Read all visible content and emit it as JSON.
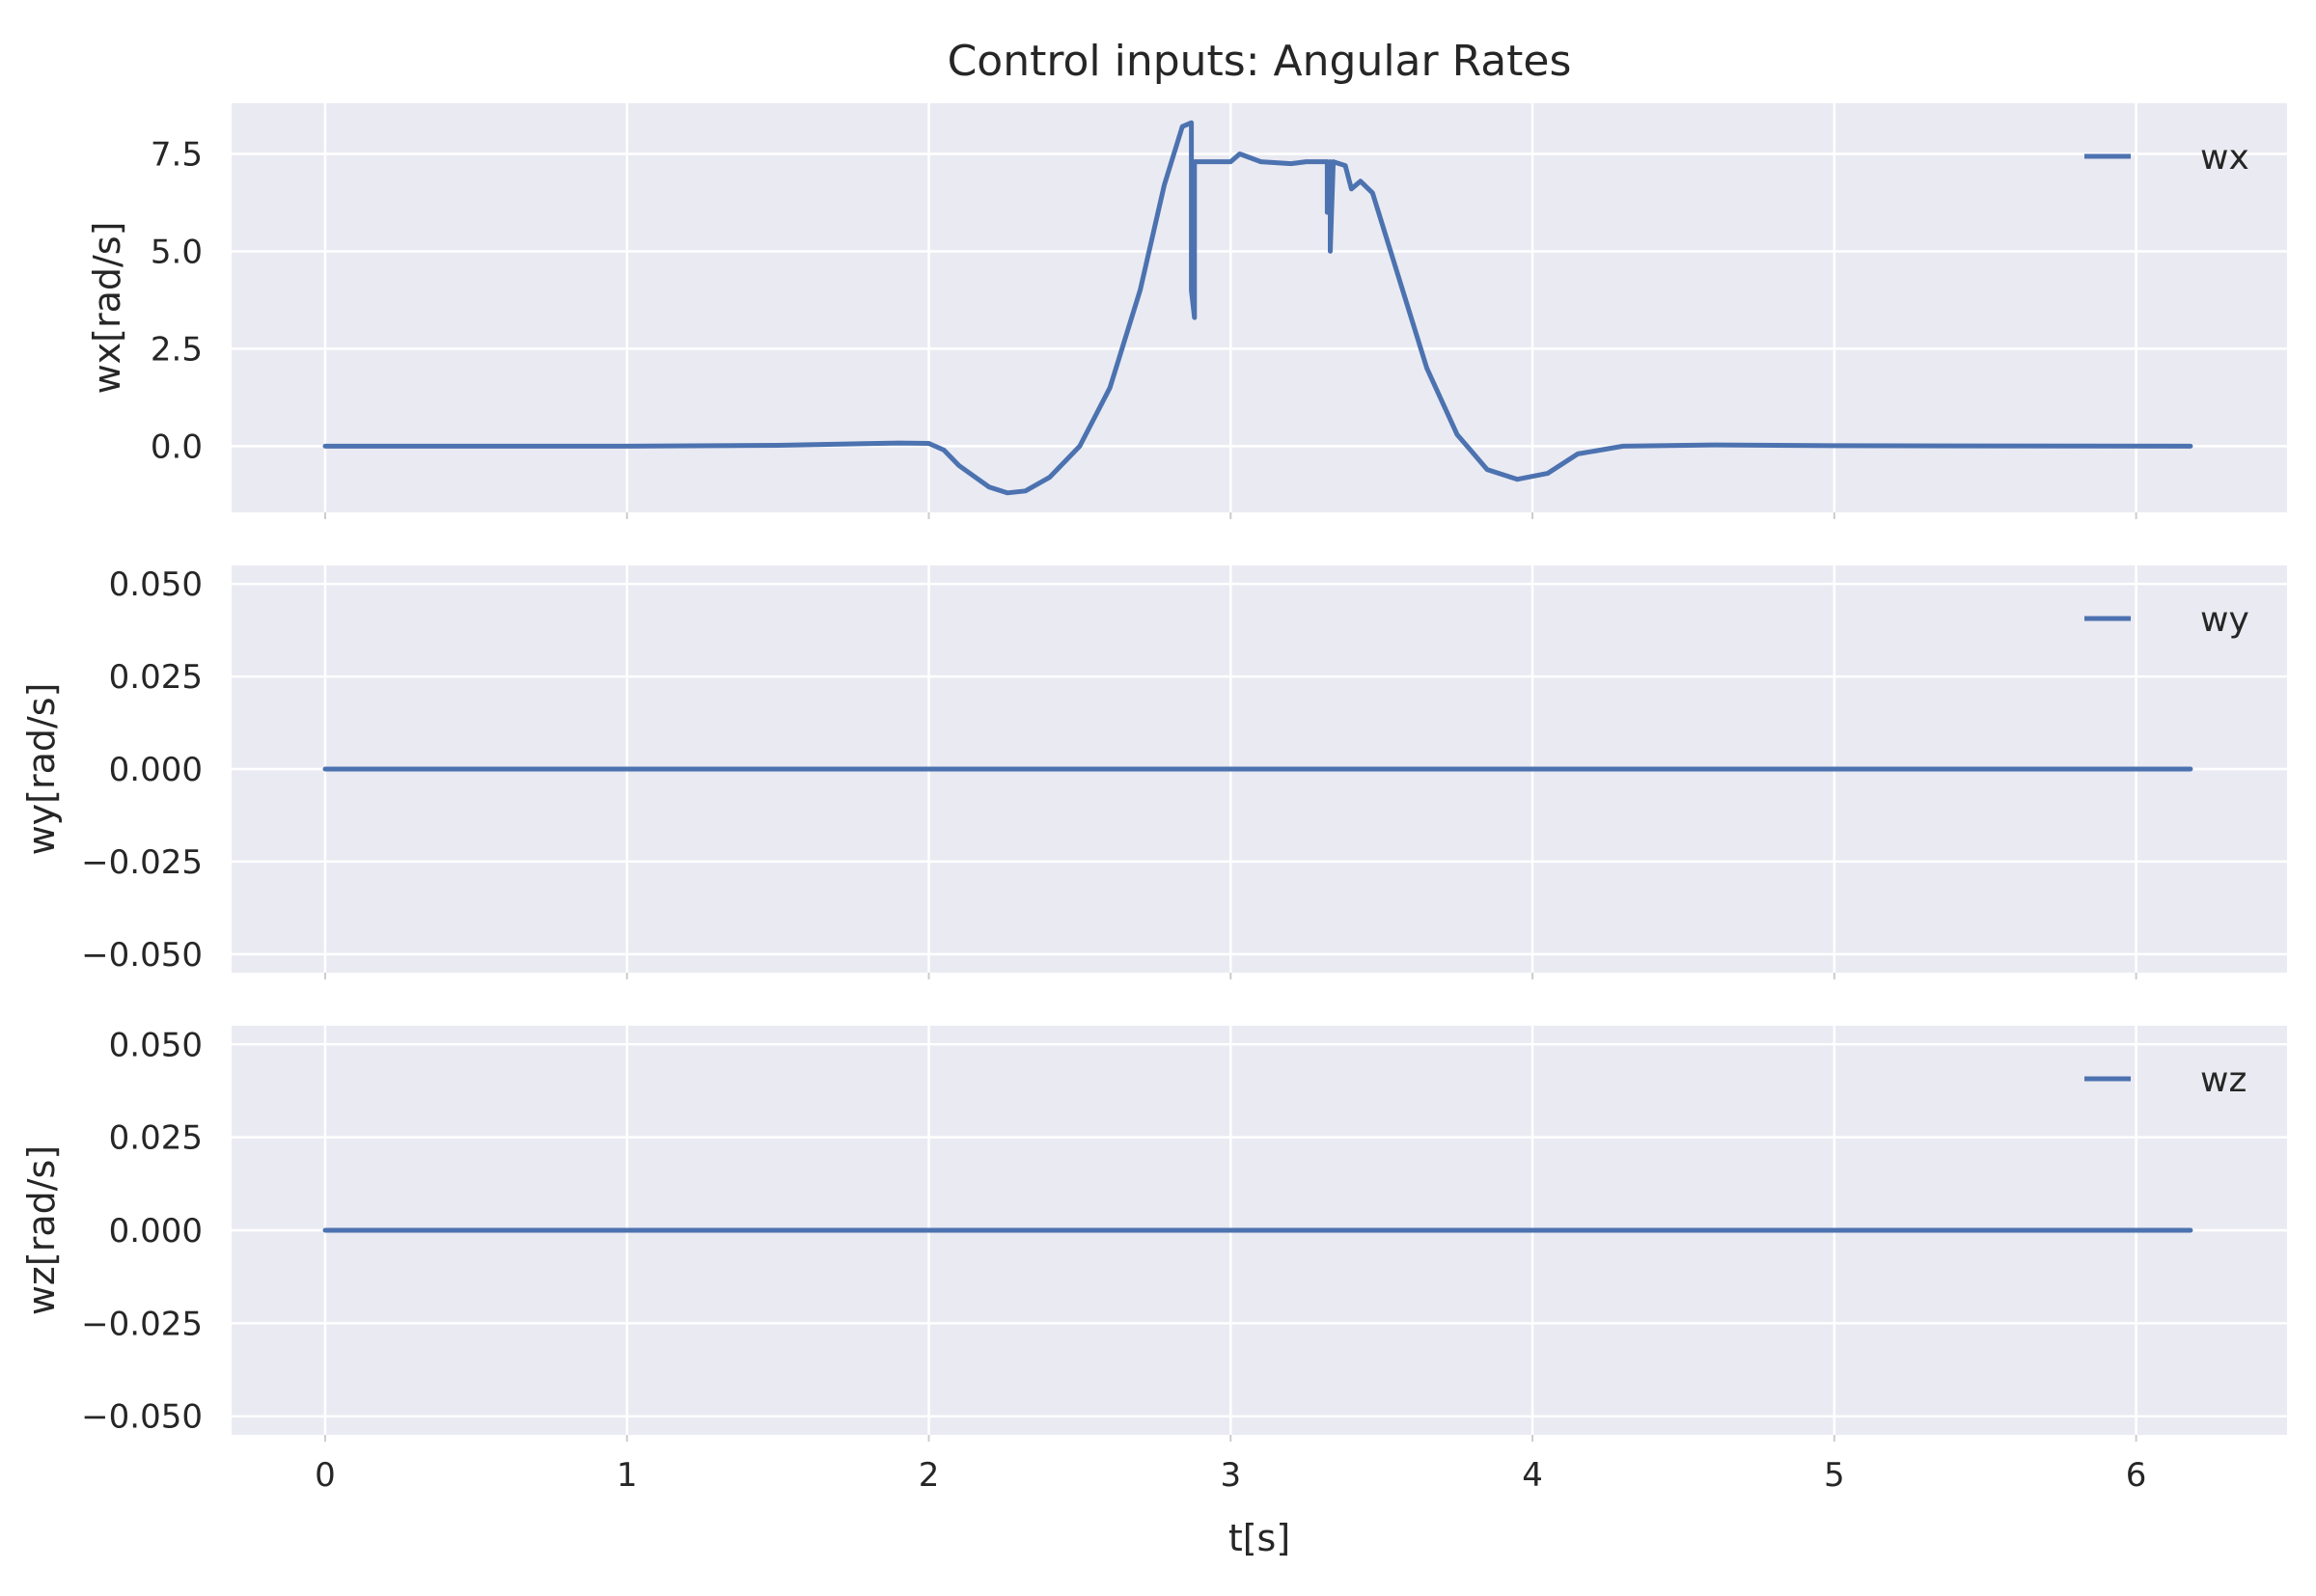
{
  "chart_data": {
    "type": "line",
    "title": "Control inputs: Angular Rates",
    "xlabel": "t[s]",
    "x_ticks": [
      0,
      1,
      2,
      3,
      4,
      5,
      6
    ],
    "xlim": [
      -0.31,
      6.5
    ],
    "grid": true,
    "legend_position": "top-right",
    "colors": {
      "background": "#EAEAF2",
      "grid": "#FFFFFF",
      "line": "#4C72B0",
      "text": "#262626"
    },
    "panels": [
      {
        "ylabel": "wx[rad/s]",
        "ylim": [
          -1.7,
          8.8
        ],
        "y_ticks": [
          0.0,
          2.5,
          5.0,
          7.5
        ],
        "y_tick_labels": [
          "0.0",
          "2.5",
          "5.0",
          "7.5"
        ],
        "series": [
          {
            "name": "wx",
            "points": [
              [
                0.0,
                0.0
              ],
              [
                1.0,
                0.0
              ],
              [
                1.5,
                0.02
              ],
              [
                1.9,
                0.08
              ],
              [
                2.0,
                0.07
              ],
              [
                2.05,
                -0.1
              ],
              [
                2.1,
                -0.5
              ],
              [
                2.2,
                -1.05
              ],
              [
                2.26,
                -1.2
              ],
              [
                2.32,
                -1.15
              ],
              [
                2.4,
                -0.8
              ],
              [
                2.5,
                0.0
              ],
              [
                2.6,
                1.5
              ],
              [
                2.7,
                4.0
              ],
              [
                2.78,
                6.7
              ],
              [
                2.84,
                8.2
              ],
              [
                2.87,
                8.3
              ],
              [
                2.87,
                4.0
              ],
              [
                2.88,
                3.3
              ],
              [
                2.88,
                7.3
              ],
              [
                2.9,
                7.3
              ],
              [
                3.0,
                7.3
              ],
              [
                3.03,
                7.5
              ],
              [
                3.1,
                7.3
              ],
              [
                3.2,
                7.25
              ],
              [
                3.25,
                7.3
              ],
              [
                3.32,
                7.3
              ],
              [
                3.32,
                6.0
              ],
              [
                3.33,
                7.3
              ],
              [
                3.33,
                5.0
              ],
              [
                3.34,
                7.3
              ],
              [
                3.38,
                7.2
              ],
              [
                3.4,
                6.6
              ],
              [
                3.43,
                6.8
              ],
              [
                3.47,
                6.5
              ],
              [
                3.55,
                4.5
              ],
              [
                3.65,
                2.0
              ],
              [
                3.75,
                0.3
              ],
              [
                3.85,
                -0.6
              ],
              [
                3.95,
                -0.85
              ],
              [
                4.05,
                -0.7
              ],
              [
                4.15,
                -0.2
              ],
              [
                4.3,
                0.0
              ],
              [
                4.6,
                0.03
              ],
              [
                5.0,
                0.01
              ],
              [
                6.18,
                0.0
              ]
            ]
          }
        ]
      },
      {
        "ylabel": "wy[rad/s]",
        "ylim": [
          -0.055,
          0.055
        ],
        "y_ticks": [
          -0.05,
          -0.025,
          0.0,
          0.025,
          0.05
        ],
        "y_tick_labels": [
          "−0.050",
          "−0.025",
          "0.000",
          "0.025",
          "0.050"
        ],
        "series": [
          {
            "name": "wy",
            "points": [
              [
                0.0,
                0.0
              ],
              [
                6.18,
                0.0
              ]
            ]
          }
        ]
      },
      {
        "ylabel": "wz[rad/s]",
        "ylim": [
          -0.055,
          0.055
        ],
        "y_ticks": [
          -0.05,
          -0.025,
          0.0,
          0.025,
          0.05
        ],
        "y_tick_labels": [
          "−0.050",
          "−0.025",
          "0.000",
          "0.025",
          "0.050"
        ],
        "series": [
          {
            "name": "wz",
            "points": [
              [
                0.0,
                0.0
              ],
              [
                6.18,
                0.0
              ]
            ]
          }
        ]
      }
    ]
  }
}
